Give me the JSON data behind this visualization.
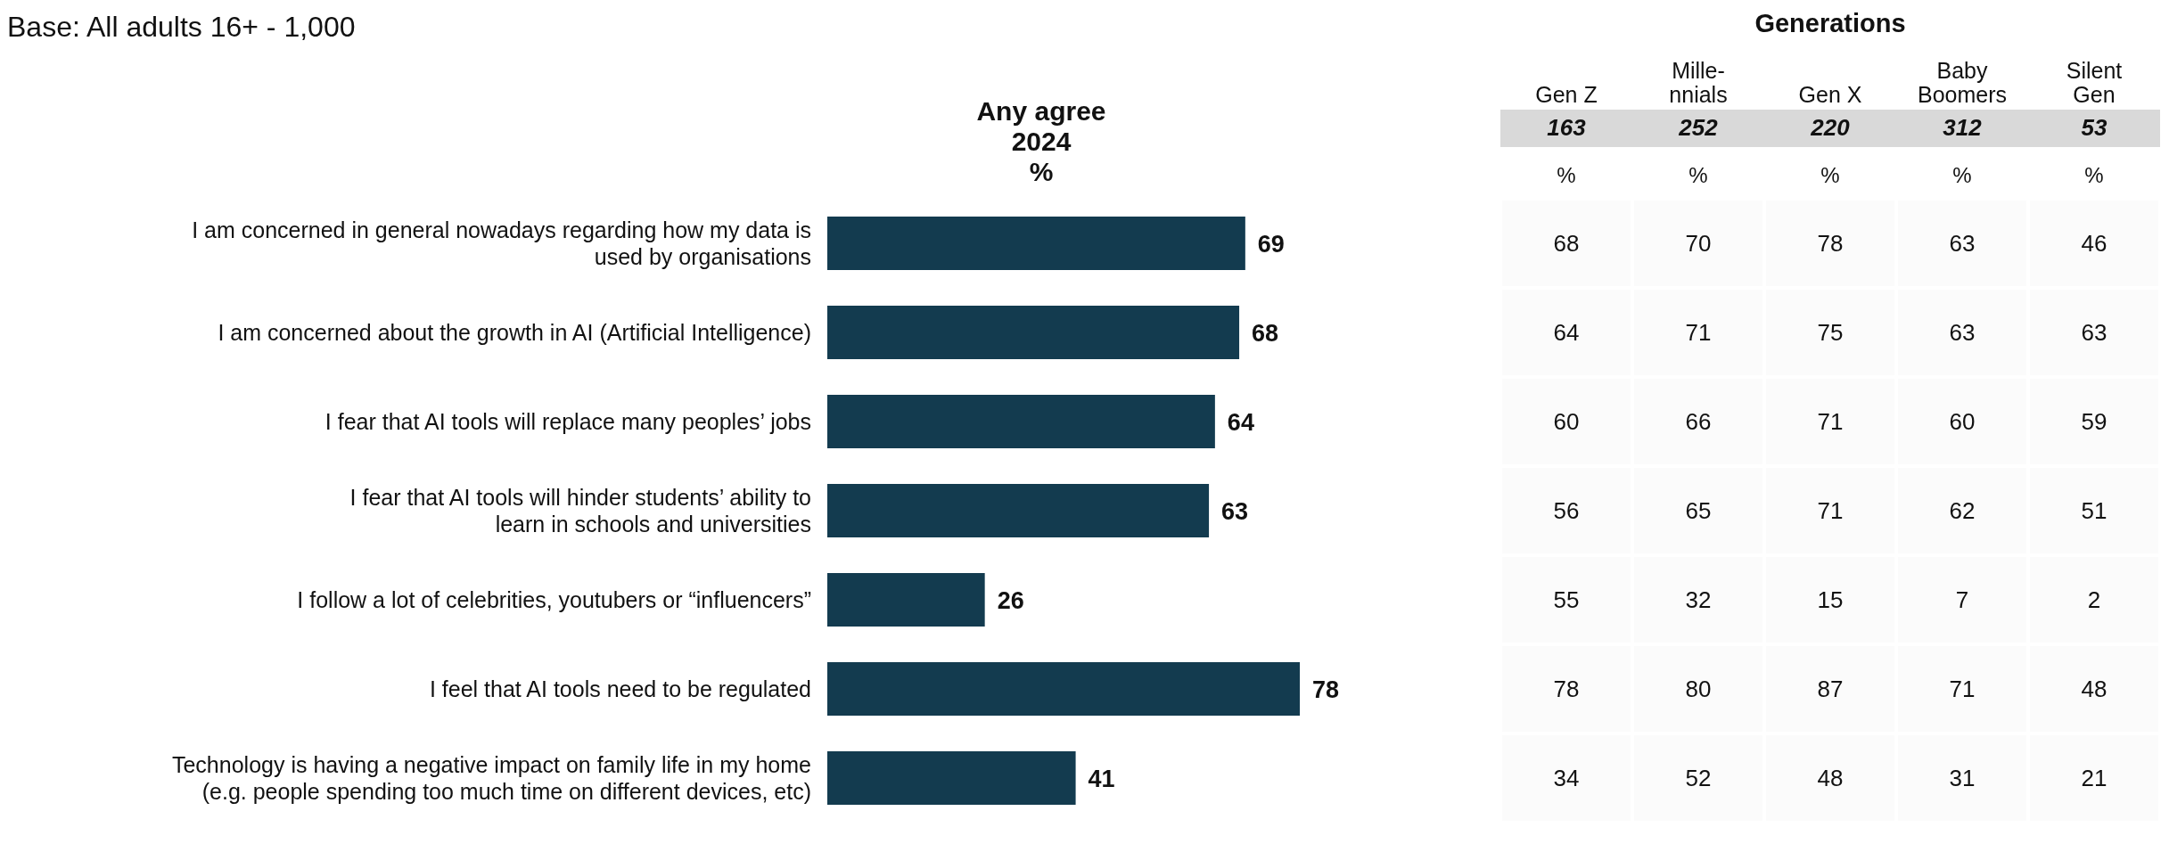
{
  "chart_data": [
    {
      "type": "bar",
      "orientation": "horizontal",
      "title": "Any agree\n2024\n%",
      "annotations": [
        "Base: All adults 16+ - 1,000"
      ],
      "categories": [
        "I am concerned in general nowadays regarding how my data is\nused by organisations",
        "I am concerned about the growth in AI (Artificial Intelligence)",
        "I fear that AI tools will replace many peoples’ jobs",
        "I fear that AI tools will hinder students’ ability to\nlearn in schools and universities",
        "I follow a lot of celebrities, youtubers or “influencers”",
        "I feel that AI tools need to be regulated",
        "Technology is having a negative impact on family life in my home\n(e.g. people spending too much time on different devices, etc)"
      ],
      "values": [
        69,
        68,
        64,
        63,
        26,
        78,
        41
      ],
      "color": "#133b4f",
      "data_labels": true
    },
    {
      "type": "heatmap",
      "title": "Generations",
      "data_labels": true,
      "categories": [
        "Gen Z",
        "Mille-\nnnials",
        "Gen X",
        "Baby\nBoomers",
        "Silent\nGen"
      ],
      "y_categories": [
        null,
        null,
        null,
        null,
        null,
        null,
        null
      ],
      "annotations": [
        "163",
        "252",
        "220",
        "312",
        "53",
        "%",
        "%",
        "%",
        "%",
        "%"
      ],
      "cells": [
        [
          68,
          70,
          78,
          63,
          46
        ],
        [
          64,
          71,
          75,
          63,
          63
        ],
        [
          60,
          66,
          71,
          60,
          59
        ],
        [
          56,
          65,
          71,
          62,
          51
        ],
        [
          55,
          32,
          15,
          7,
          2
        ],
        [
          78,
          80,
          87,
          71,
          48
        ],
        [
          34,
          52,
          48,
          31,
          21
        ]
      ]
    }
  ]
}
